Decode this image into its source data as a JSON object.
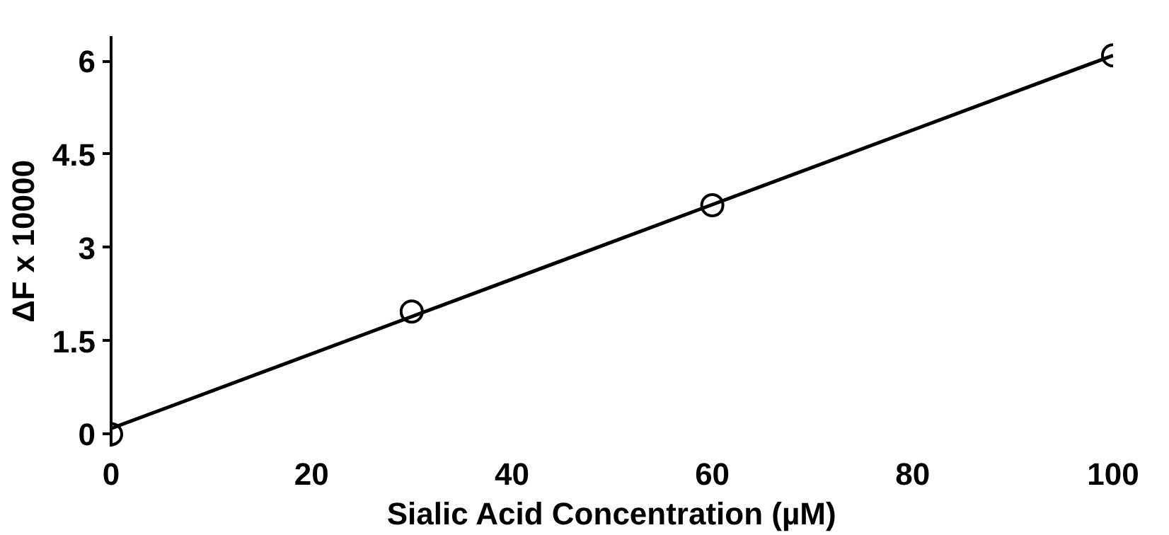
{
  "chart_data": {
    "type": "scatter",
    "xlabel": "Sialic Acid Concentration (µM)",
    "ylabel": "ΔF x 10000",
    "xlim": [
      0,
      100
    ],
    "ylim": [
      -0.2,
      6.4
    ],
    "xticks": [
      0,
      20,
      40,
      60,
      80,
      100
    ],
    "yticks": [
      0,
      1.5,
      3,
      4.5,
      6
    ],
    "grid": false,
    "marker": "circle",
    "series": [
      {
        "color": "#000000",
        "x": [
          0,
          30,
          60,
          100
        ],
        "values": [
          0,
          1.97,
          3.68,
          6.09
        ]
      },
      {
        "type": "line",
        "color": "#000000",
        "x": [
          0,
          100
        ],
        "values": [
          0.09,
          6.09
        ],
        "marker": "none",
        "line_style": "solid"
      }
    ]
  }
}
